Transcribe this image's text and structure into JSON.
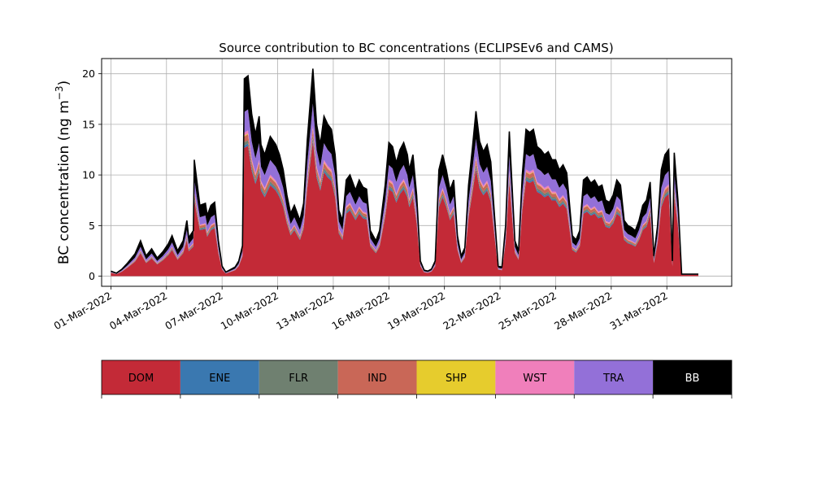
{
  "chart_data": {
    "type": "area",
    "title": "Source contribution to BC concentrations (ECLIPSEv6 and CAMS)",
    "xlabel": "",
    "ylabel": "BC concentration (ng m",
    "ylabel_sup": "−3",
    "ylabel_close": ")",
    "ylim": [
      -1,
      21.5
    ],
    "yticks": [
      0,
      5,
      10,
      15,
      20
    ],
    "x_unit": "days after 01-Mar-2022",
    "xlim": [
      -0.5,
      33.5
    ],
    "xticks": [
      {
        "x": 0,
        "label": "01-Mar-2022"
      },
      {
        "x": 3,
        "label": "04-Mar-2022"
      },
      {
        "x": 6,
        "label": "07-Mar-2022"
      },
      {
        "x": 9,
        "label": "10-Mar-2022"
      },
      {
        "x": 12,
        "label": "13-Mar-2022"
      },
      {
        "x": 15,
        "label": "16-Mar-2022"
      },
      {
        "x": 18,
        "label": "19-Mar-2022"
      },
      {
        "x": 21,
        "label": "22-Mar-2022"
      },
      {
        "x": 24,
        "label": "25-Mar-2022"
      },
      {
        "x": 27,
        "label": "28-Mar-2022"
      },
      {
        "x": 30,
        "label": "31-Mar-2022"
      }
    ],
    "grid": true,
    "total_points": [
      [
        0,
        0.5
      ],
      [
        0.3,
        0.3
      ],
      [
        0.6,
        0.7
      ],
      [
        0.9,
        1.3
      ],
      [
        1.3,
        2.2
      ],
      [
        1.6,
        3.5
      ],
      [
        1.9,
        2.0
      ],
      [
        2.2,
        2.7
      ],
      [
        2.5,
        1.8
      ],
      [
        2.8,
        2.4
      ],
      [
        3.1,
        3.2
      ],
      [
        3.3,
        4.0
      ],
      [
        3.6,
        2.5
      ],
      [
        3.9,
        3.5
      ],
      [
        4.1,
        5.5
      ],
      [
        4.2,
        3.8
      ],
      [
        4.45,
        4.5
      ],
      [
        4.5,
        11.5
      ],
      [
        4.7,
        8.5
      ],
      [
        4.8,
        7.0
      ],
      [
        5.1,
        7.2
      ],
      [
        5.2,
        6.0
      ],
      [
        5.4,
        7.0
      ],
      [
        5.6,
        7.3
      ],
      [
        5.8,
        3.5
      ],
      [
        6.0,
        1.0
      ],
      [
        6.2,
        0.4
      ],
      [
        6.4,
        0.6
      ],
      [
        6.7,
        0.9
      ],
      [
        6.9,
        1.5
      ],
      [
        7.1,
        3.0
      ],
      [
        7.2,
        19.5
      ],
      [
        7.4,
        19.8
      ],
      [
        7.6,
        16.0
      ],
      [
        7.8,
        14.0
      ],
      [
        8.0,
        15.8
      ],
      [
        8.1,
        13.0
      ],
      [
        8.3,
        12.0
      ],
      [
        8.6,
        13.8
      ],
      [
        8.9,
        13.0
      ],
      [
        9.1,
        12.0
      ],
      [
        9.3,
        10.5
      ],
      [
        9.5,
        8.0
      ],
      [
        9.7,
        6.2
      ],
      [
        9.9,
        7.0
      ],
      [
        10.2,
        5.5
      ],
      [
        10.4,
        7.2
      ],
      [
        10.6,
        13.5
      ],
      [
        10.9,
        20.5
      ],
      [
        11.1,
        15.0
      ],
      [
        11.3,
        13.0
      ],
      [
        11.5,
        15.8
      ],
      [
        11.7,
        15.0
      ],
      [
        11.9,
        14.5
      ],
      [
        12.1,
        12.0
      ],
      [
        12.3,
        6.5
      ],
      [
        12.5,
        5.5
      ],
      [
        12.7,
        9.5
      ],
      [
        12.9,
        10.0
      ],
      [
        13.2,
        8.5
      ],
      [
        13.4,
        9.5
      ],
      [
        13.6,
        8.8
      ],
      [
        13.8,
        8.6
      ],
      [
        14.0,
        4.5
      ],
      [
        14.3,
        3.5
      ],
      [
        14.5,
        4.5
      ],
      [
        14.8,
        9.0
      ],
      [
        15.0,
        13.2
      ],
      [
        15.2,
        12.8
      ],
      [
        15.4,
        11.2
      ],
      [
        15.6,
        12.5
      ],
      [
        15.8,
        13.2
      ],
      [
        16.0,
        12.0
      ],
      [
        16.1,
        10.5
      ],
      [
        16.3,
        12.0
      ],
      [
        16.5,
        8.0
      ],
      [
        16.7,
        1.5
      ],
      [
        16.9,
        0.6
      ],
      [
        17.1,
        0.5
      ],
      [
        17.3,
        0.7
      ],
      [
        17.5,
        1.5
      ],
      [
        17.7,
        10.5
      ],
      [
        17.9,
        12.0
      ],
      [
        18.1,
        10.5
      ],
      [
        18.3,
        8.5
      ],
      [
        18.5,
        9.5
      ],
      [
        18.7,
        4.0
      ],
      [
        18.9,
        2.0
      ],
      [
        19.1,
        2.8
      ],
      [
        19.3,
        9.0
      ],
      [
        19.5,
        12.5
      ],
      [
        19.7,
        16.3
      ],
      [
        19.9,
        13.3
      ],
      [
        20.1,
        12.3
      ],
      [
        20.3,
        13.0
      ],
      [
        20.5,
        11.3
      ],
      [
        20.7,
        6.0
      ],
      [
        20.9,
        1.0
      ],
      [
        21.1,
        0.9
      ],
      [
        21.3,
        5.0
      ],
      [
        21.5,
        14.3
      ],
      [
        21.8,
        3.5
      ],
      [
        22.0,
        2.5
      ],
      [
        22.2,
        10.0
      ],
      [
        22.4,
        14.5
      ],
      [
        22.6,
        14.2
      ],
      [
        22.8,
        14.5
      ],
      [
        23.0,
        12.8
      ],
      [
        23.2,
        12.5
      ],
      [
        23.4,
        12.0
      ],
      [
        23.6,
        12.3
      ],
      [
        23.8,
        11.5
      ],
      [
        24.0,
        11.5
      ],
      [
        24.2,
        10.5
      ],
      [
        24.4,
        11.0
      ],
      [
        24.6,
        10.2
      ],
      [
        24.9,
        4.0
      ],
      [
        25.1,
        3.6
      ],
      [
        25.3,
        4.5
      ],
      [
        25.5,
        9.5
      ],
      [
        25.7,
        9.8
      ],
      [
        25.9,
        9.2
      ],
      [
        26.1,
        9.5
      ],
      [
        26.3,
        8.8
      ],
      [
        26.5,
        9.0
      ],
      [
        26.7,
        7.5
      ],
      [
        26.9,
        7.3
      ],
      [
        27.1,
        8.0
      ],
      [
        27.3,
        9.5
      ],
      [
        27.5,
        9.0
      ],
      [
        27.7,
        5.5
      ],
      [
        27.9,
        5.0
      ],
      [
        28.1,
        4.8
      ],
      [
        28.3,
        4.5
      ],
      [
        28.5,
        5.5
      ],
      [
        28.7,
        7.0
      ],
      [
        28.9,
        7.5
      ],
      [
        29.1,
        9.3
      ],
      [
        29.3,
        2.0
      ],
      [
        29.5,
        5.0
      ],
      [
        29.7,
        10.5
      ],
      [
        29.9,
        12.0
      ],
      [
        30.1,
        12.5
      ],
      [
        30.3,
        1.5
      ],
      [
        30.4,
        12.2
      ],
      [
        30.6,
        7.5
      ],
      [
        30.8,
        0.2
      ],
      [
        31.0,
        0.2
      ],
      [
        31.5,
        0.2
      ],
      [
        31.7,
        0.2
      ]
    ],
    "fractions": {
      "DOM": 0.65,
      "ENE": 0.012,
      "FLR": 0.016,
      "IND": 0.03,
      "SHP": 0.004,
      "WST": 0.015,
      "TRA": 0.105,
      "BB": "remainder"
    },
    "series": [
      {
        "name": "DOM",
        "color": "#c32a37"
      },
      {
        "name": "ENE",
        "color": "#3a78b0"
      },
      {
        "name": "FLR",
        "color": "#6f8070"
      },
      {
        "name": "IND",
        "color": "#c96757"
      },
      {
        "name": "SHP",
        "color": "#e6cc2d"
      },
      {
        "name": "WST",
        "color": "#f07fbb"
      },
      {
        "name": "TRA",
        "color": "#9370d8"
      },
      {
        "name": "BB",
        "color": "#000000"
      }
    ],
    "legend": {
      "placement": "bottom",
      "text_colors": {
        "BB": "#ffffff",
        "default": "#000000"
      }
    }
  }
}
